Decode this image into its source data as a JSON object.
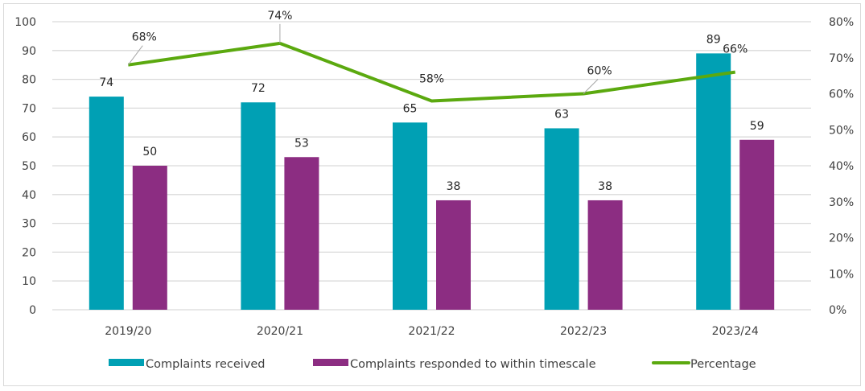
{
  "chart_data": {
    "type": "bar",
    "title": "",
    "xlabel": "",
    "ylabel": "",
    "categories": [
      "2019/20",
      "2020/21",
      "2021/22",
      "2022/23",
      "2023/24"
    ],
    "series": [
      {
        "name": "Complaints received",
        "type": "bar",
        "axis": "left",
        "color": "#00A0B4",
        "values": [
          74,
          72,
          65,
          63,
          89
        ]
      },
      {
        "name": "Complaints responded to within timescale",
        "type": "bar",
        "axis": "left",
        "color": "#8C2D82",
        "values": [
          50,
          53,
          38,
          38,
          59
        ]
      },
      {
        "name": "Percentage",
        "type": "line",
        "axis": "right",
        "color": "#5BA90F",
        "values": [
          68,
          74,
          58,
          60,
          66
        ],
        "labels": [
          "68%",
          "74%",
          "58%",
          "60%",
          "66%"
        ]
      }
    ],
    "left_axis": {
      "ylim": [
        0,
        100
      ],
      "ticks": [
        "0",
        "10",
        "20",
        "30",
        "40",
        "50",
        "60",
        "70",
        "80",
        "90",
        "100"
      ]
    },
    "right_axis": {
      "ylim": [
        0,
        80
      ],
      "ticks": [
        "0%",
        "10%",
        "20%",
        "30%",
        "40%",
        "50%",
        "60%",
        "70%",
        "80%"
      ]
    },
    "grid": true,
    "legend": {
      "placement": "bottom",
      "entries": [
        "Complaints received",
        "Complaints responded to within timescale",
        "Percentage"
      ]
    }
  }
}
